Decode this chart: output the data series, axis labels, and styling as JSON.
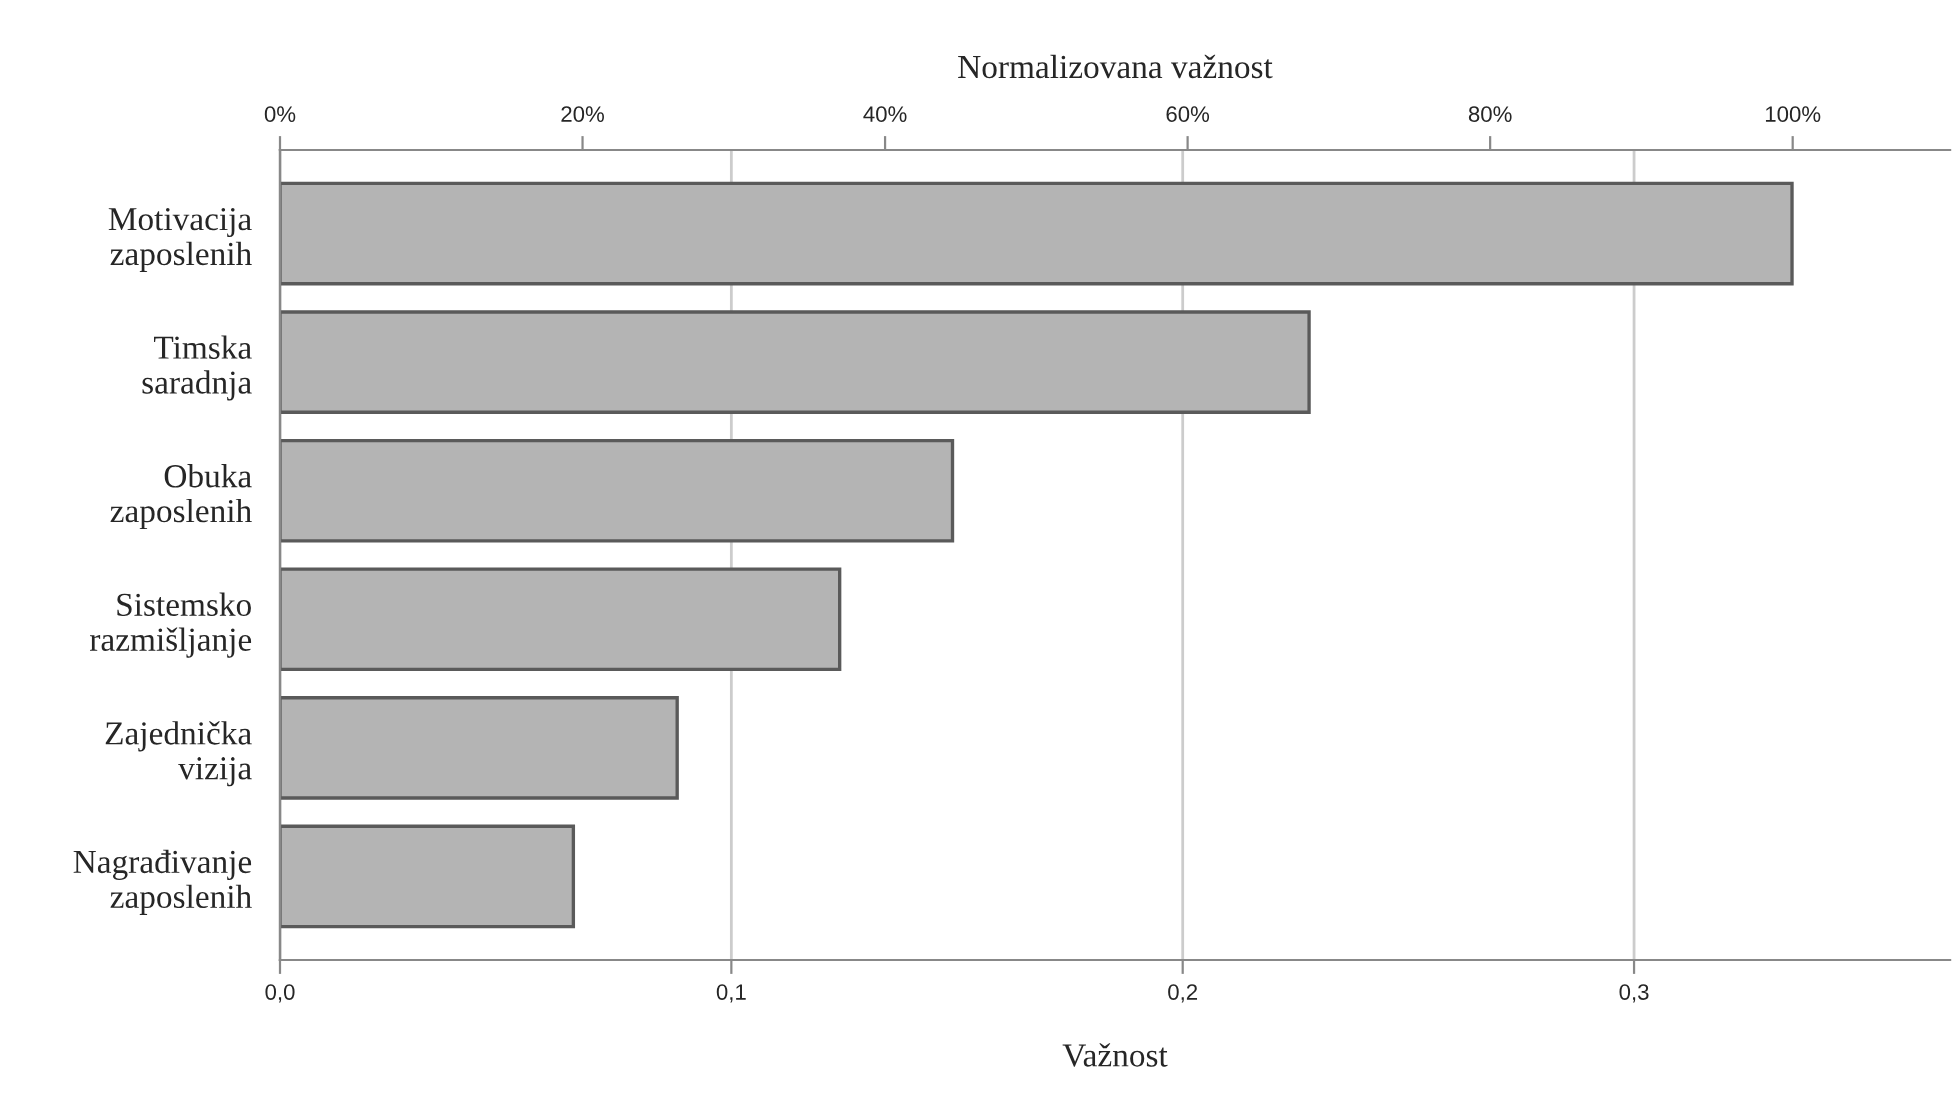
{
  "chart_data": {
    "type": "bar",
    "orientation": "horizontal",
    "categories": [
      "Motivacija\nzaposlenih",
      "Timska\nsaradnja",
      "Obuka\nzaposlenih",
      "Sistemsko\nrazmišljanje",
      "Zajednička\nvizija",
      "Nagrađivanje\nzaposlenih"
    ],
    "values": [
      0.335,
      0.228,
      0.149,
      0.124,
      0.088,
      0.065
    ],
    "color": "#b4b4b4",
    "xlabel": "Važnost",
    "x2label": "Normalizovana važnost",
    "xlim": [
      0,
      0.37
    ],
    "xticks": [
      {
        "value": 0,
        "label": "0,0"
      },
      {
        "value": 0.1,
        "label": "0,1"
      },
      {
        "value": 0.2,
        "label": "0,2"
      },
      {
        "value": 0.3,
        "label": "0,3"
      }
    ],
    "x2lim": [
      0,
      110.4
    ],
    "x2ticks": [
      {
        "value": 0,
        "label": "0%"
      },
      {
        "value": 20,
        "label": "20%"
      },
      {
        "value": 40,
        "label": "40%"
      },
      {
        "value": 60,
        "label": "60%"
      },
      {
        "value": 80,
        "label": "80%"
      },
      {
        "value": 100,
        "label": "100%"
      }
    ],
    "grid": "x",
    "legend": false
  }
}
